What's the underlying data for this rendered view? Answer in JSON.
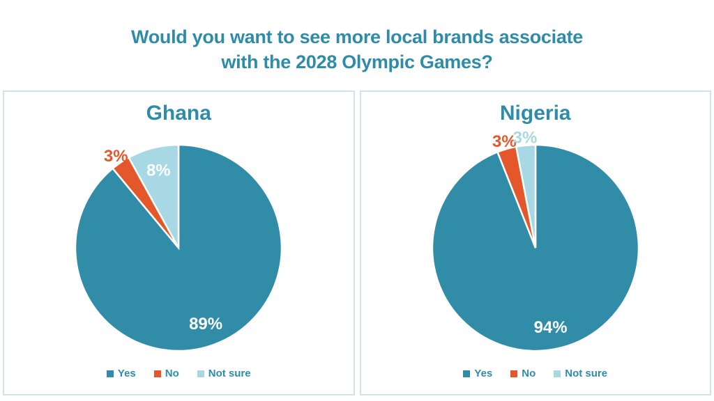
{
  "header": {
    "title_line1": "Would you want to see more local brands associate",
    "title_line2": "with the 2028 Olympic Games?"
  },
  "styles": {
    "teal": "#2E8CA8",
    "orange": "#E4572B",
    "light_blue": "#A8D8E4",
    "panel_border": "#CFE3EE",
    "inside_label_color": "#FFFFFF"
  },
  "chart_data": [
    {
      "type": "pie",
      "title": "Ghana",
      "categories": [
        "Yes",
        "No",
        "Not sure"
      ],
      "values": [
        89,
        3,
        8
      ],
      "data_labels": [
        "89%",
        "3%",
        "8%"
      ],
      "colors": [
        "#318CA7",
        "#E4572B",
        "#A8D8E4"
      ],
      "start_angle_deg": 0,
      "direction": "clockwise",
      "legend_position": "bottom"
    },
    {
      "type": "pie",
      "title": "Nigeria",
      "categories": [
        "Yes",
        "No",
        "Not sure"
      ],
      "values": [
        94,
        3,
        3
      ],
      "data_labels": [
        "94%",
        "3%",
        "3%"
      ],
      "colors": [
        "#318CA7",
        "#E4572B",
        "#A8D8E4"
      ],
      "start_angle_deg": 0,
      "direction": "clockwise",
      "legend_position": "bottom"
    }
  ]
}
